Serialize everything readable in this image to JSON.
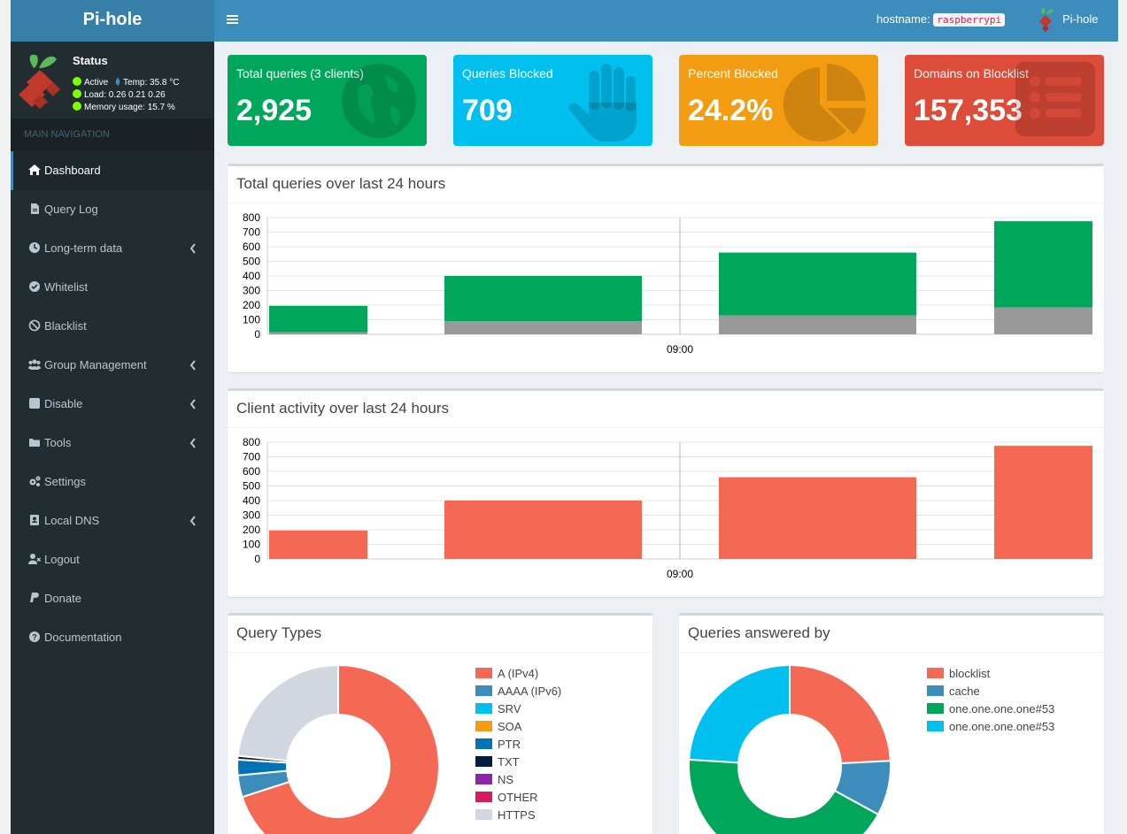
{
  "app": {
    "title": "Pi-hole"
  },
  "status": {
    "title": "Status",
    "active": "Active",
    "temp": "Temp: 35.8 °C",
    "load": "Load:  0.26  0.21  0.26",
    "memory": "Memory usage:  15.7 %"
  },
  "nav": {
    "header": "MAIN NAVIGATION",
    "items": [
      {
        "label": "Dashboard",
        "icon": "home-icon",
        "has_submenu": false
      },
      {
        "label": "Query Log",
        "icon": "file-icon",
        "has_submenu": false
      },
      {
        "label": "Long-term data",
        "icon": "clock-icon",
        "has_submenu": true
      },
      {
        "label": "Whitelist",
        "icon": "check-circle-icon",
        "has_submenu": false
      },
      {
        "label": "Blacklist",
        "icon": "ban-icon",
        "has_submenu": false
      },
      {
        "label": "Group Management",
        "icon": "users-icon",
        "has_submenu": true
      },
      {
        "label": "Disable",
        "icon": "stop-icon",
        "has_submenu": true
      },
      {
        "label": "Tools",
        "icon": "folder-icon",
        "has_submenu": true
      },
      {
        "label": "Settings",
        "icon": "gears-icon",
        "has_submenu": false
      },
      {
        "label": "Local DNS",
        "icon": "address-book-icon",
        "has_submenu": true
      },
      {
        "label": "Logout",
        "icon": "user-times-icon",
        "has_submenu": false
      },
      {
        "label": "Donate",
        "icon": "paypal-icon",
        "has_submenu": false
      },
      {
        "label": "Documentation",
        "icon": "question-circle-icon",
        "has_submenu": false
      }
    ]
  },
  "header": {
    "hostname_label": "hostname:",
    "hostname_value": "raspberrypi",
    "user_label": "Pi-hole"
  },
  "stats": [
    {
      "label": "Total queries (3 clients)",
      "value": "2,925",
      "color": "#00a65a",
      "icon": "globe-icon"
    },
    {
      "label": "Queries Blocked",
      "value": "709",
      "color": "#00c0ef",
      "icon": "hand-icon"
    },
    {
      "label": "Percent Blocked",
      "value": "24.2%",
      "color": "#f39c12",
      "icon": "pie-chart-icon"
    },
    {
      "label": "Domains on Blocklist",
      "value": "157,353",
      "color": "#dd4b39",
      "icon": "list-icon"
    }
  ],
  "chart_data": [
    {
      "type": "bar",
      "title": "Total queries over last 24 hours",
      "ylim": [
        0,
        800
      ],
      "yticks": [
        0,
        100,
        200,
        300,
        400,
        500,
        600,
        700,
        800
      ],
      "xtick_label": "09:00",
      "series": [
        {
          "name": "",
          "color": "#999999",
          "values": [
            15,
            90,
            130,
            185
          ]
        },
        {
          "name": "",
          "color": "#00a65a",
          "values": [
            180,
            310,
            430,
            590
          ]
        }
      ]
    },
    {
      "type": "bar",
      "title": "Client activity over last 24 hours",
      "ylim": [
        0,
        800
      ],
      "yticks": [
        0,
        100,
        200,
        300,
        400,
        500,
        600,
        700,
        800
      ],
      "xtick_label": "09:00",
      "series": [
        {
          "name": "",
          "color": "#f56954",
          "values": [
            195,
            400,
            560,
            775
          ]
        }
      ]
    },
    {
      "type": "pie",
      "title": "Query Types",
      "donut": true,
      "slices": [
        {
          "label": "A (IPv4)",
          "value": 70.0,
          "color": "#f56954"
        },
        {
          "label": "AAAA (IPv6)",
          "value": 3.5,
          "color": "#3c8dbc"
        },
        {
          "label": "SRV",
          "value": 0.0,
          "color": "#00c0ef"
        },
        {
          "label": "SOA",
          "value": 0.0,
          "color": "#f39c12"
        },
        {
          "label": "PTR",
          "value": 2.5,
          "color": "#0073b7"
        },
        {
          "label": "TXT",
          "value": 0.6,
          "color": "#001f3f"
        },
        {
          "label": "NS",
          "value": 0.0,
          "color": "#8e24aa"
        },
        {
          "label": "OTHER",
          "value": 0.0,
          "color": "#d81b60"
        },
        {
          "label": "HTTPS",
          "value": 23.4,
          "color": "#d2d6de"
        }
      ]
    },
    {
      "type": "pie",
      "title": "Queries answered by",
      "donut": true,
      "slices": [
        {
          "label": "blocklist",
          "value": 24.2,
          "color": "#f56954"
        },
        {
          "label": "cache",
          "value": 8.8,
          "color": "#3c8dbc"
        },
        {
          "label": "one.one.one.one#53",
          "value": 43.0,
          "color": "#00a65a"
        },
        {
          "label": "one.one.one.one#53",
          "value": 24.0,
          "color": "#00c0ef"
        }
      ]
    }
  ]
}
